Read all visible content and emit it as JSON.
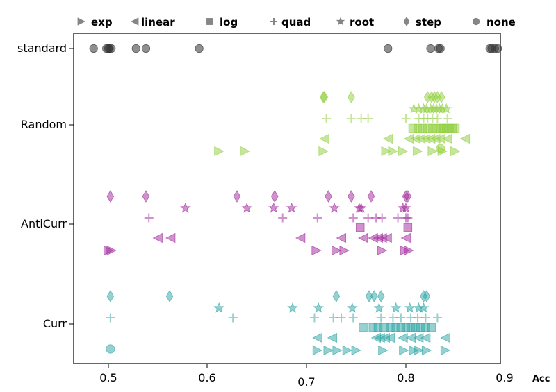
{
  "chart_data": {
    "type": "scatter",
    "title": "",
    "xlabel": "Acc",
    "ylabel": "",
    "xlim": [
      0.465,
      0.915
    ],
    "x_ticks": [
      0.5,
      0.6,
      0.7,
      0.8,
      0.9
    ],
    "x_tick_labels": [
      "0.5",
      "0.6",
      "0.7",
      "0.8",
      "0.9"
    ],
    "categories": [
      "standard",
      "Random",
      "AntiCurr",
      "Curr"
    ],
    "grid": false,
    "legend_position": "top",
    "category_colors": {
      "standard": "#333333",
      "Random": "#8fce3c",
      "AntiCurr": "#a0259a",
      "Curr": "#2ba3a3"
    },
    "legend": [
      {
        "name": "exp",
        "marker": "triangle-right"
      },
      {
        "name": "linear",
        "marker": "triangle-left"
      },
      {
        "name": "log",
        "marker": "square"
      },
      {
        "name": "quad",
        "marker": "plus"
      },
      {
        "name": "root",
        "marker": "star"
      },
      {
        "name": "step",
        "marker": "diamond"
      },
      {
        "name": "none",
        "marker": "circle"
      }
    ],
    "series": [
      {
        "category": "standard",
        "marker": "none",
        "x": [
          0.485,
          0.498,
          0.5,
          0.501,
          0.503,
          0.528,
          0.538,
          0.592,
          0.782,
          0.825,
          0.833,
          0.835,
          0.885,
          0.887,
          0.89,
          0.893
        ]
      },
      {
        "category": "Random",
        "marker": "step",
        "x": [
          0.717,
          0.718,
          0.745,
          0.822,
          0.826,
          0.829,
          0.832,
          0.836
        ]
      },
      {
        "category": "Random",
        "marker": "root",
        "x": [
          0.808,
          0.813,
          0.818,
          0.821,
          0.825,
          0.828,
          0.831,
          0.834,
          0.837,
          0.841
        ]
      },
      {
        "category": "Random",
        "marker": "quad",
        "x": [
          0.72,
          0.745,
          0.755,
          0.762,
          0.8,
          0.813,
          0.818,
          0.822,
          0.827,
          0.832,
          0.842
        ]
      },
      {
        "category": "Random",
        "marker": "log",
        "x": [
          0.807,
          0.812,
          0.817,
          0.822,
          0.827,
          0.831,
          0.835,
          0.838,
          0.841,
          0.844,
          0.847,
          0.85
        ]
      },
      {
        "category": "Random",
        "marker": "linear",
        "x": [
          0.718,
          0.782,
          0.803,
          0.81,
          0.815,
          0.82,
          0.825,
          0.83,
          0.835,
          0.842,
          0.86
        ]
      },
      {
        "category": "Random",
        "marker": "exp",
        "x": [
          0.612,
          0.638,
          0.717,
          0.78,
          0.787,
          0.797,
          0.812,
          0.827,
          0.837,
          0.85
        ]
      },
      {
        "category": "Random",
        "marker": "none",
        "x": [
          0.835
        ]
      },
      {
        "category": "AntiCurr",
        "marker": "step",
        "x": [
          0.502,
          0.538,
          0.63,
          0.668,
          0.722,
          0.745,
          0.765,
          0.8,
          0.802
        ]
      },
      {
        "category": "AntiCurr",
        "marker": "root",
        "x": [
          0.578,
          0.64,
          0.667,
          0.685,
          0.728,
          0.753,
          0.755,
          0.797,
          0.8
        ]
      },
      {
        "category": "AntiCurr",
        "marker": "quad",
        "x": [
          0.541,
          0.676,
          0.711,
          0.747,
          0.762,
          0.77,
          0.776,
          0.792,
          0.8,
          0.802
        ]
      },
      {
        "category": "AntiCurr",
        "marker": "log",
        "x": [
          0.754,
          0.802
        ]
      },
      {
        "category": "AntiCurr",
        "marker": "linear",
        "x": [
          0.55,
          0.563,
          0.694,
          0.735,
          0.757,
          0.767,
          0.772,
          0.776,
          0.781,
          0.8
        ]
      },
      {
        "category": "AntiCurr",
        "marker": "exp",
        "x": [
          0.5,
          0.503,
          0.71,
          0.73,
          0.738,
          0.776,
          0.799,
          0.803
        ]
      },
      {
        "category": "Curr",
        "marker": "step",
        "x": [
          0.502,
          0.562,
          0.73,
          0.763,
          0.768,
          0.775,
          0.818,
          0.821
        ]
      },
      {
        "category": "Curr",
        "marker": "root",
        "x": [
          0.612,
          0.686,
          0.712,
          0.746,
          0.773,
          0.79,
          0.804,
          0.813,
          0.818
        ]
      },
      {
        "category": "Curr",
        "marker": "quad",
        "x": [
          0.502,
          0.626,
          0.708,
          0.727,
          0.735,
          0.747,
          0.775,
          0.787,
          0.795,
          0.805,
          0.812,
          0.82,
          0.832
        ]
      },
      {
        "category": "Curr",
        "marker": "log",
        "x": [
          0.757,
          0.767,
          0.772,
          0.778,
          0.785,
          0.79,
          0.795,
          0.8,
          0.805,
          0.81,
          0.815,
          0.82,
          0.826
        ]
      },
      {
        "category": "Curr",
        "marker": "linear",
        "x": [
          0.711,
          0.726,
          0.77,
          0.774,
          0.779,
          0.784,
          0.797,
          0.805,
          0.813,
          0.82,
          0.84
        ]
      },
      {
        "category": "Curr",
        "marker": "exp",
        "x": [
          0.711,
          0.722,
          0.731,
          0.741,
          0.75,
          0.777,
          0.798,
          0.808,
          0.813,
          0.821,
          0.84
        ]
      },
      {
        "category": "Curr",
        "marker": "none",
        "x": [
          0.502
        ]
      }
    ]
  }
}
